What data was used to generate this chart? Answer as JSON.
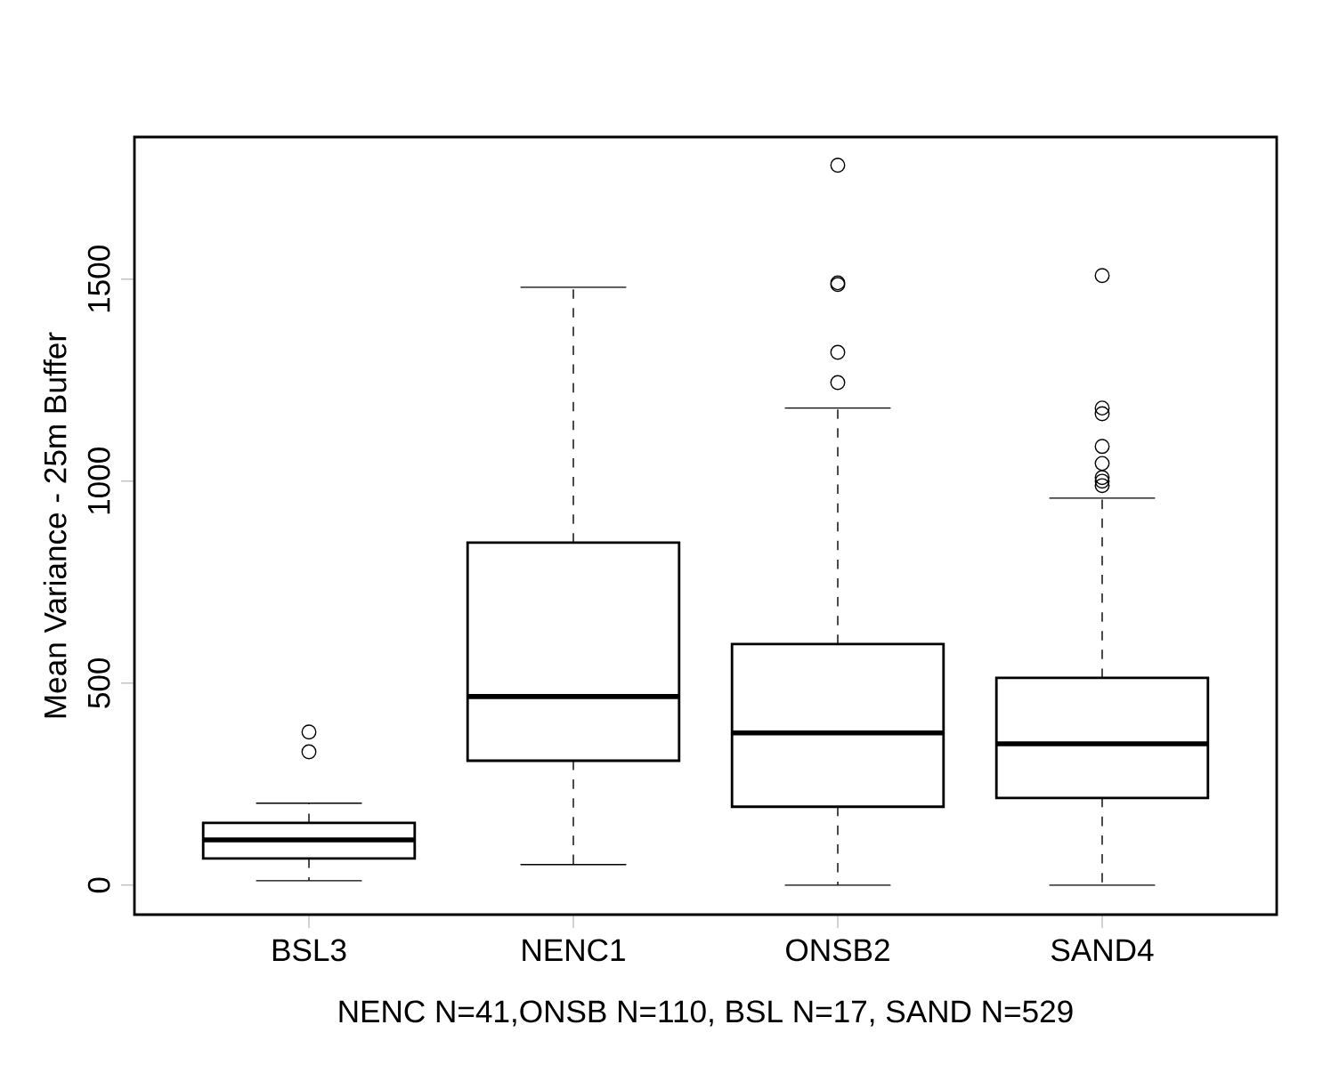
{
  "chart_data": {
    "type": "box",
    "xlabel": "NENC N=41,ONSB N=110, BSL N=17, SAND N=529",
    "ylabel": "Mean Variance - 25m Buffer",
    "categories": [
      "BSL3",
      "NENC1",
      "ONSB2",
      "SAND4"
    ],
    "boxes": [
      {
        "low": 11,
        "q1": 66,
        "median": 112,
        "q3": 154,
        "high": 203,
        "outliers": [
          379,
          330
        ]
      },
      {
        "low": 51,
        "q1": 308,
        "median": 467,
        "q3": 848,
        "high": 1480
      },
      {
        "low": 0,
        "q1": 194,
        "median": 377,
        "q3": 597,
        "high": 1181,
        "outliers": [
          1782,
          1491,
          1487,
          1319,
          1244
        ]
      },
      {
        "low": 0,
        "q1": 216,
        "median": 350,
        "q3": 513,
        "high": 958,
        "outliers": [
          1509,
          1181,
          1167,
          1086,
          1044,
          1009,
          1000,
          989
        ]
      }
    ],
    "ylim": [
      -73,
      1852
    ],
    "yticks": [
      0,
      500,
      1000,
      1500
    ],
    "grid": false
  }
}
